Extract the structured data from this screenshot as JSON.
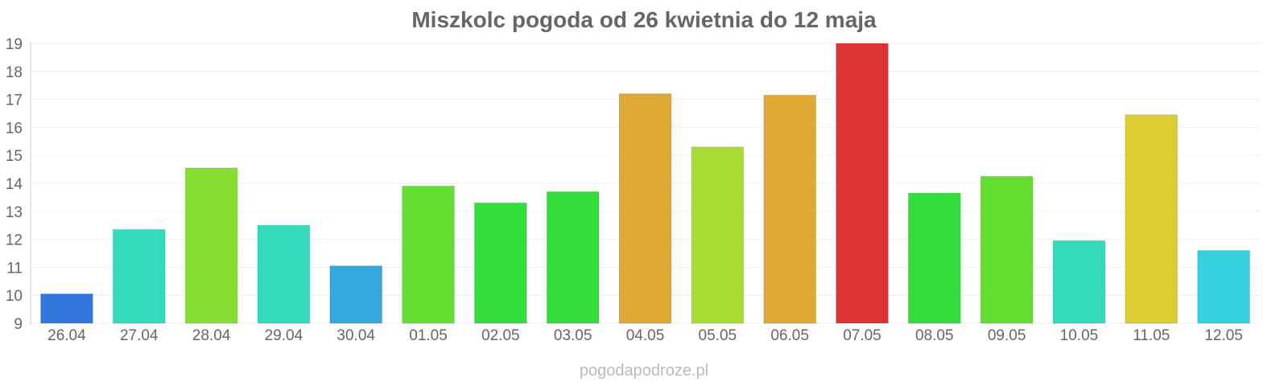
{
  "chart_data": {
    "type": "bar",
    "title": "Miszkolc pogoda od 26 kwietnia do 12 maja",
    "xlabel": "",
    "ylabel": "",
    "categories": [
      "26.04",
      "27.04",
      "28.04",
      "29.04",
      "30.04",
      "01.05",
      "02.05",
      "03.05",
      "04.05",
      "05.05",
      "06.05",
      "07.05",
      "08.05",
      "09.05",
      "10.05",
      "11.05",
      "12.05"
    ],
    "values": [
      10.05,
      12.35,
      14.55,
      12.5,
      11.05,
      13.9,
      13.3,
      13.7,
      17.2,
      15.3,
      17.15,
      19.0,
      13.65,
      14.25,
      11.95,
      16.45,
      11.6
    ],
    "colors": [
      "#3377dd",
      "#33dbba",
      "#88dd33",
      "#33dbba",
      "#33a8dd",
      "#66dd33",
      "#33dd3b",
      "#33dd3b",
      "#dda833",
      "#aadd33",
      "#dda833",
      "#dd3333",
      "#33dd3b",
      "#66dd33",
      "#33dbba",
      "#dbcc33",
      "#33d0dd"
    ],
    "ylim": [
      9,
      19
    ],
    "yticks": [
      9,
      10,
      11,
      12,
      13,
      14,
      15,
      16,
      17,
      18,
      19
    ],
    "grid": true,
    "legend": "none"
  },
  "footer": {
    "watermark": "pogodapodroze.pl"
  }
}
